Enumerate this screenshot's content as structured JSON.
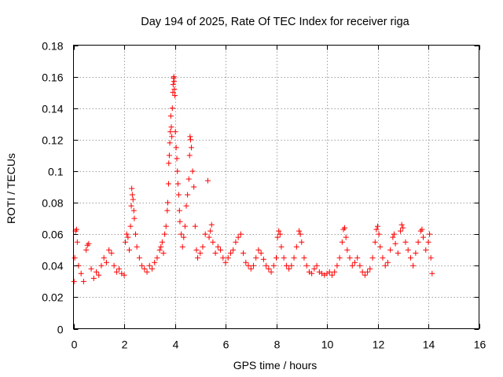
{
  "chart_data": {
    "type": "scatter",
    "title": "Day 194 of 2025, Rate Of TEC Index for receiver riga",
    "xlabel": "GPS time / hours",
    "ylabel": "ROTI / TECUs",
    "xlim": [
      0,
      16
    ],
    "ylim": [
      0,
      0.18
    ],
    "x_ticks": [
      0,
      2,
      4,
      6,
      8,
      10,
      12,
      14,
      16
    ],
    "x_tick_labels": [
      "0",
      "2",
      "4",
      "6",
      "8",
      "10",
      "12",
      "14",
      "16"
    ],
    "y_ticks": [
      0,
      0.02,
      0.04,
      0.06,
      0.08,
      0.1,
      0.12,
      0.14,
      0.16,
      0.18
    ],
    "y_tick_labels": [
      "0",
      "0.02",
      "0.04",
      "0.06",
      "0.08",
      "0.1",
      "0.12",
      "0.14",
      "0.16",
      "0.18"
    ],
    "grid": true,
    "marker": "+",
    "color": "#ff0000",
    "series": [
      {
        "name": "ROTI",
        "points": [
          [
            0.02,
            0.03
          ],
          [
            0.05,
            0.045
          ],
          [
            0.08,
            0.062
          ],
          [
            0.12,
            0.063
          ],
          [
            0.15,
            0.055
          ],
          [
            0.2,
            0.04
          ],
          [
            0.3,
            0.035
          ],
          [
            0.4,
            0.03
          ],
          [
            0.5,
            0.05
          ],
          [
            0.55,
            0.053
          ],
          [
            0.6,
            0.054
          ],
          [
            0.7,
            0.038
          ],
          [
            0.8,
            0.032
          ],
          [
            0.9,
            0.036
          ],
          [
            1.0,
            0.034
          ],
          [
            1.1,
            0.04
          ],
          [
            1.2,
            0.045
          ],
          [
            1.3,
            0.042
          ],
          [
            1.4,
            0.05
          ],
          [
            1.5,
            0.048
          ],
          [
            1.6,
            0.04
          ],
          [
            1.7,
            0.036
          ],
          [
            1.8,
            0.038
          ],
          [
            1.9,
            0.035
          ],
          [
            2.0,
            0.034
          ],
          [
            2.05,
            0.055
          ],
          [
            2.1,
            0.06
          ],
          [
            2.15,
            0.058
          ],
          [
            2.2,
            0.05
          ],
          [
            2.25,
            0.065
          ],
          [
            2.28,
            0.078
          ],
          [
            2.3,
            0.089
          ],
          [
            2.32,
            0.085
          ],
          [
            2.35,
            0.082
          ],
          [
            2.38,
            0.075
          ],
          [
            2.4,
            0.07
          ],
          [
            2.45,
            0.06
          ],
          [
            2.5,
            0.052
          ],
          [
            2.6,
            0.045
          ],
          [
            2.7,
            0.04
          ],
          [
            2.8,
            0.038
          ],
          [
            2.9,
            0.036
          ],
          [
            3.0,
            0.04
          ],
          [
            3.1,
            0.038
          ],
          [
            3.2,
            0.042
          ],
          [
            3.3,
            0.045
          ],
          [
            3.4,
            0.05
          ],
          [
            3.45,
            0.052
          ],
          [
            3.5,
            0.055
          ],
          [
            3.55,
            0.048
          ],
          [
            3.6,
            0.06
          ],
          [
            3.65,
            0.065
          ],
          [
            3.7,
            0.075
          ],
          [
            3.72,
            0.08
          ],
          [
            3.75,
            0.092
          ],
          [
            3.76,
            0.105
          ],
          [
            3.78,
            0.11
          ],
          [
            3.8,
            0.118
          ],
          [
            3.82,
            0.125
          ],
          [
            3.84,
            0.135
          ],
          [
            3.86,
            0.128
          ],
          [
            3.88,
            0.122
          ],
          [
            3.9,
            0.14
          ],
          [
            3.92,
            0.15
          ],
          [
            3.93,
            0.155
          ],
          [
            3.95,
            0.159
          ],
          [
            3.96,
            0.16
          ],
          [
            3.97,
            0.157
          ],
          [
            3.98,
            0.152
          ],
          [
            4.0,
            0.148
          ],
          [
            4.02,
            0.125
          ],
          [
            4.05,
            0.115
          ],
          [
            4.08,
            0.108
          ],
          [
            4.1,
            0.1
          ],
          [
            4.12,
            0.092
          ],
          [
            4.15,
            0.085
          ],
          [
            4.18,
            0.075
          ],
          [
            4.2,
            0.068
          ],
          [
            4.25,
            0.06
          ],
          [
            4.3,
            0.052
          ],
          [
            4.35,
            0.058
          ],
          [
            4.4,
            0.065
          ],
          [
            4.45,
            0.078
          ],
          [
            4.5,
            0.085
          ],
          [
            4.55,
            0.095
          ],
          [
            4.58,
            0.11
          ],
          [
            4.6,
            0.122
          ],
          [
            4.62,
            0.12
          ],
          [
            4.65,
            0.115
          ],
          [
            4.7,
            0.1
          ],
          [
            4.75,
            0.09
          ],
          [
            4.8,
            0.065
          ],
          [
            4.85,
            0.05
          ],
          [
            4.9,
            0.045
          ],
          [
            5.0,
            0.048
          ],
          [
            5.1,
            0.052
          ],
          [
            5.2,
            0.06
          ],
          [
            5.3,
            0.094
          ],
          [
            5.35,
            0.058
          ],
          [
            5.4,
            0.062
          ],
          [
            5.45,
            0.066
          ],
          [
            5.5,
            0.055
          ],
          [
            5.6,
            0.048
          ],
          [
            5.7,
            0.052
          ],
          [
            5.8,
            0.05
          ],
          [
            5.9,
            0.045
          ],
          [
            6.0,
            0.042
          ],
          [
            6.1,
            0.045
          ],
          [
            6.2,
            0.048
          ],
          [
            6.3,
            0.05
          ],
          [
            6.4,
            0.055
          ],
          [
            6.5,
            0.058
          ],
          [
            6.6,
            0.06
          ],
          [
            6.7,
            0.048
          ],
          [
            6.8,
            0.042
          ],
          [
            6.9,
            0.04
          ],
          [
            7.0,
            0.038
          ],
          [
            7.1,
            0.04
          ],
          [
            7.2,
            0.045
          ],
          [
            7.3,
            0.05
          ],
          [
            7.4,
            0.048
          ],
          [
            7.5,
            0.044
          ],
          [
            7.6,
            0.04
          ],
          [
            7.7,
            0.038
          ],
          [
            7.8,
            0.036
          ],
          [
            7.9,
            0.04
          ],
          [
            8.0,
            0.045
          ],
          [
            8.05,
            0.058
          ],
          [
            8.1,
            0.062
          ],
          [
            8.15,
            0.06
          ],
          [
            8.2,
            0.052
          ],
          [
            8.3,
            0.045
          ],
          [
            8.4,
            0.04
          ],
          [
            8.5,
            0.038
          ],
          [
            8.6,
            0.04
          ],
          [
            8.7,
            0.045
          ],
          [
            8.8,
            0.052
          ],
          [
            8.9,
            0.062
          ],
          [
            8.95,
            0.06
          ],
          [
            9.0,
            0.055
          ],
          [
            9.1,
            0.045
          ],
          [
            9.2,
            0.04
          ],
          [
            9.3,
            0.036
          ],
          [
            9.4,
            0.035
          ],
          [
            9.5,
            0.038
          ],
          [
            9.6,
            0.04
          ],
          [
            9.7,
            0.036
          ],
          [
            9.8,
            0.035
          ],
          [
            9.9,
            0.034
          ],
          [
            10.0,
            0.035
          ],
          [
            10.1,
            0.036
          ],
          [
            10.2,
            0.034
          ],
          [
            10.3,
            0.036
          ],
          [
            10.4,
            0.04
          ],
          [
            10.5,
            0.045
          ],
          [
            10.6,
            0.055
          ],
          [
            10.65,
            0.063
          ],
          [
            10.7,
            0.064
          ],
          [
            10.75,
            0.058
          ],
          [
            10.8,
            0.05
          ],
          [
            10.9,
            0.045
          ],
          [
            11.0,
            0.04
          ],
          [
            11.1,
            0.042
          ],
          [
            11.2,
            0.045
          ],
          [
            11.3,
            0.04
          ],
          [
            11.4,
            0.036
          ],
          [
            11.5,
            0.034
          ],
          [
            11.6,
            0.036
          ],
          [
            11.7,
            0.038
          ],
          [
            11.8,
            0.045
          ],
          [
            11.9,
            0.055
          ],
          [
            11.95,
            0.063
          ],
          [
            12.0,
            0.065
          ],
          [
            12.05,
            0.06
          ],
          [
            12.1,
            0.052
          ],
          [
            12.2,
            0.045
          ],
          [
            12.3,
            0.04
          ],
          [
            12.4,
            0.042
          ],
          [
            12.5,
            0.05
          ],
          [
            12.6,
            0.058
          ],
          [
            12.65,
            0.06
          ],
          [
            12.7,
            0.054
          ],
          [
            12.8,
            0.048
          ],
          [
            12.9,
            0.062
          ],
          [
            12.95,
            0.066
          ],
          [
            13.0,
            0.064
          ],
          [
            13.1,
            0.055
          ],
          [
            13.2,
            0.05
          ],
          [
            13.3,
            0.045
          ],
          [
            13.4,
            0.04
          ],
          [
            13.5,
            0.048
          ],
          [
            13.6,
            0.055
          ],
          [
            13.7,
            0.062
          ],
          [
            13.75,
            0.063
          ],
          [
            13.8,
            0.058
          ],
          [
            13.9,
            0.05
          ],
          [
            14.0,
            0.055
          ],
          [
            14.05,
            0.06
          ],
          [
            14.1,
            0.045
          ],
          [
            14.15,
            0.035
          ]
        ]
      }
    ]
  }
}
